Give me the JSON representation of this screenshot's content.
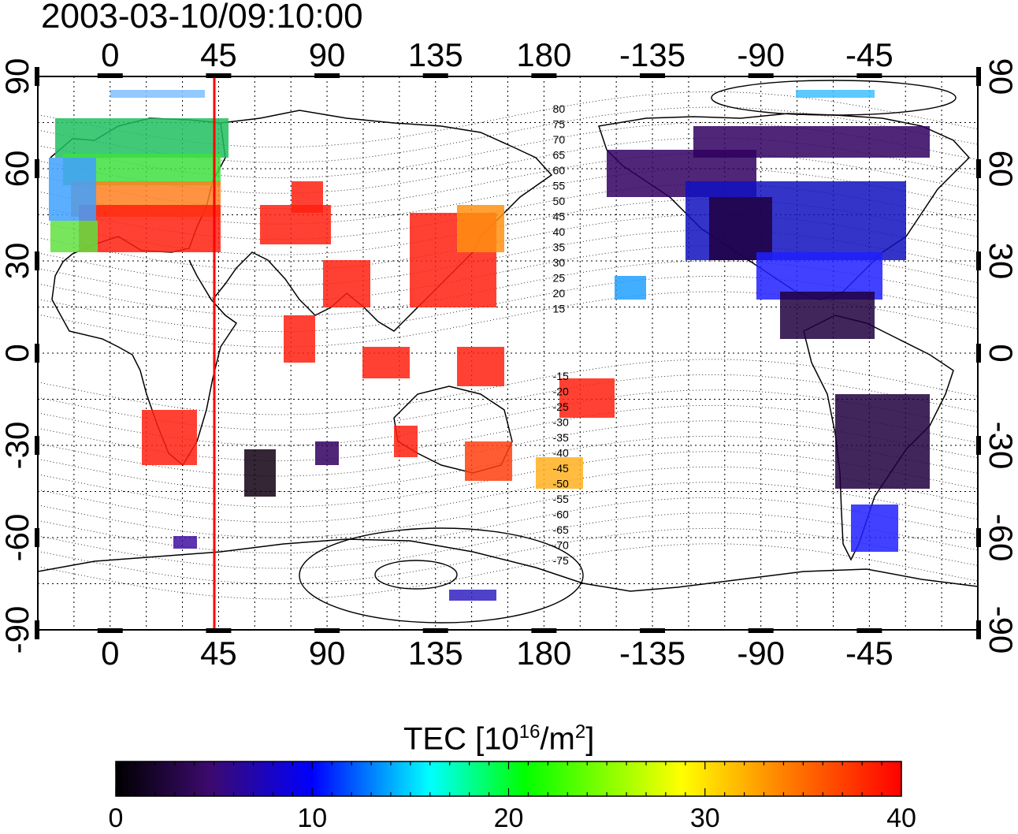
{
  "title": "2003-03-10/09:10:00",
  "map": {
    "type": "global ionospheric TEC map",
    "projection": "equirectangular",
    "center_longitude": 165,
    "longitude_range": [
      -30,
      360
    ],
    "latitude_range": [
      -90,
      90
    ],
    "lon_tick_labels": [
      "0",
      "45",
      "90",
      "135",
      "180",
      "-135",
      "-90",
      "-45"
    ],
    "lat_tick_labels": [
      "90",
      "60",
      "30",
      "0",
      "-30",
      "-60",
      "-90"
    ],
    "grid": "dotted, 15 degree spacing",
    "marker_longitude": 45,
    "marker_color": "#ff0000",
    "contour_labels": [
      "80",
      "75",
      "70",
      "65",
      "60",
      "55",
      "50",
      "45",
      "40",
      "35",
      "30",
      "25",
      "20",
      "15",
      "-15",
      "-20",
      "-25",
      "-30",
      "-35",
      "-40",
      "-45",
      "-50",
      "-55",
      "-60",
      "-65",
      "-70",
      "-75"
    ]
  },
  "colorbar": {
    "title": "TEC  [10",
    "title_exp": "16",
    "title_unit": "/m",
    "title_exp2": "2",
    "title_end": "]",
    "min": 0,
    "max": 40,
    "tick_labels": [
      "0",
      "10",
      "20",
      "30",
      "40"
    ],
    "colors": [
      "#000000",
      "#3c0a6e",
      "#0000ff",
      "#00ffff",
      "#00ff00",
      "#ffff00",
      "#ff8000",
      "#ff0000"
    ]
  }
}
